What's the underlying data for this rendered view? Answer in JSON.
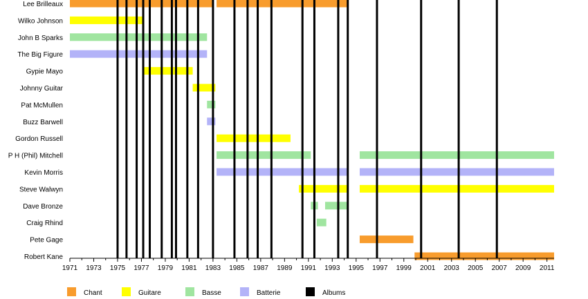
{
  "chart_data": {
    "type": "timeline",
    "title": "",
    "xlabel": "",
    "ylabel": "",
    "xlim": [
      1971,
      2011.6
    ],
    "x_ticks": [
      1971,
      1972,
      1973,
      1974,
      1975,
      1976,
      1977,
      1978,
      1979,
      1980,
      1981,
      1982,
      1983,
      1984,
      1985,
      1986,
      1987,
      1988,
      1989,
      1990,
      1991,
      1992,
      1993,
      1994,
      1995,
      1996,
      1997,
      1998,
      1999,
      2000,
      2001,
      2002,
      2003,
      2004,
      2005,
      2006,
      2007,
      2008,
      2009,
      2010,
      2011
    ],
    "x_tick_labels": [
      "1971",
      "1973",
      "1975",
      "1977",
      "1979",
      "1981",
      "1983",
      "1985",
      "1987",
      "1989",
      "1991",
      "1993",
      "1995",
      "1997",
      "1999",
      "2001",
      "2003",
      "2005",
      "2007",
      "2009",
      "2011"
    ],
    "members": [
      "Lee Brilleaux",
      "Wilko Johnson",
      "John B Sparks",
      "The Big Figure",
      "Gypie Mayo",
      "Johnny Guitar",
      "Pat McMullen",
      "Buzz Barwell",
      "Gordon Russell",
      "P H (Phil) Mitchell",
      "Kevin Morris",
      "Steve Walwyn",
      "Dave Bronze",
      "Craig Rhind",
      "Pete Gage",
      "Robert Kane"
    ],
    "roles": [
      {
        "key": "chant",
        "name": "Chant",
        "color": "#f89c2d"
      },
      {
        "key": "guitare",
        "name": "Guitare",
        "color": "#ffff00"
      },
      {
        "key": "basse",
        "name": "Basse",
        "color": "#a0e5a0"
      },
      {
        "key": "batterie",
        "name": "Batterie",
        "color": "#b3b3f8"
      },
      {
        "key": "albums",
        "name": "Albums",
        "color": "#000000"
      }
    ],
    "bars": [
      {
        "member": 0,
        "role": "chant",
        "start": 1971.0,
        "end": 1983.0
      },
      {
        "member": 0,
        "role": "chant",
        "start": 1983.3,
        "end": 1994.35
      },
      {
        "member": 1,
        "role": "guitare",
        "start": 1971.0,
        "end": 1977.2
      },
      {
        "member": 2,
        "role": "basse",
        "start": 1971.0,
        "end": 1982.5
      },
      {
        "member": 3,
        "role": "batterie",
        "start": 1971.0,
        "end": 1982.5
      },
      {
        "member": 4,
        "role": "guitare",
        "start": 1977.2,
        "end": 1981.3
      },
      {
        "member": 5,
        "role": "guitare",
        "start": 1981.3,
        "end": 1983.2
      },
      {
        "member": 6,
        "role": "basse",
        "start": 1982.5,
        "end": 1983.2
      },
      {
        "member": 7,
        "role": "batterie",
        "start": 1982.5,
        "end": 1983.2
      },
      {
        "member": 8,
        "role": "guitare",
        "start": 1983.3,
        "end": 1989.5
      },
      {
        "member": 9,
        "role": "basse",
        "start": 1983.3,
        "end": 1991.2
      },
      {
        "member": 9,
        "role": "basse",
        "start": 1995.3,
        "end": 2011.6
      },
      {
        "member": 10,
        "role": "batterie",
        "start": 1983.3,
        "end": 1994.35
      },
      {
        "member": 10,
        "role": "batterie",
        "start": 1995.3,
        "end": 2011.6
      },
      {
        "member": 11,
        "role": "guitare",
        "start": 1990.2,
        "end": 1994.35
      },
      {
        "member": 11,
        "role": "guitare",
        "start": 1995.3,
        "end": 2011.6
      },
      {
        "member": 12,
        "role": "basse",
        "start": 1991.2,
        "end": 1991.8
      },
      {
        "member": 12,
        "role": "basse",
        "start": 1992.4,
        "end": 1994.35
      },
      {
        "member": 13,
        "role": "basse",
        "start": 1991.7,
        "end": 1992.5
      },
      {
        "member": 14,
        "role": "chant",
        "start": 1995.3,
        "end": 1999.8
      },
      {
        "member": 15,
        "role": "chant",
        "start": 1999.9,
        "end": 2011.6
      }
    ],
    "albums": [
      1975.0,
      1975.75,
      1976.6,
      1977.15,
      1977.7,
      1978.7,
      1979.55,
      1979.9,
      1980.85,
      1981.75,
      1983.0,
      1984.8,
      1985.9,
      1986.75,
      1987.9,
      1990.5,
      1991.5,
      1993.5,
      1994.3,
      1996.75,
      2000.45,
      2003.6,
      2006.8
    ]
  }
}
